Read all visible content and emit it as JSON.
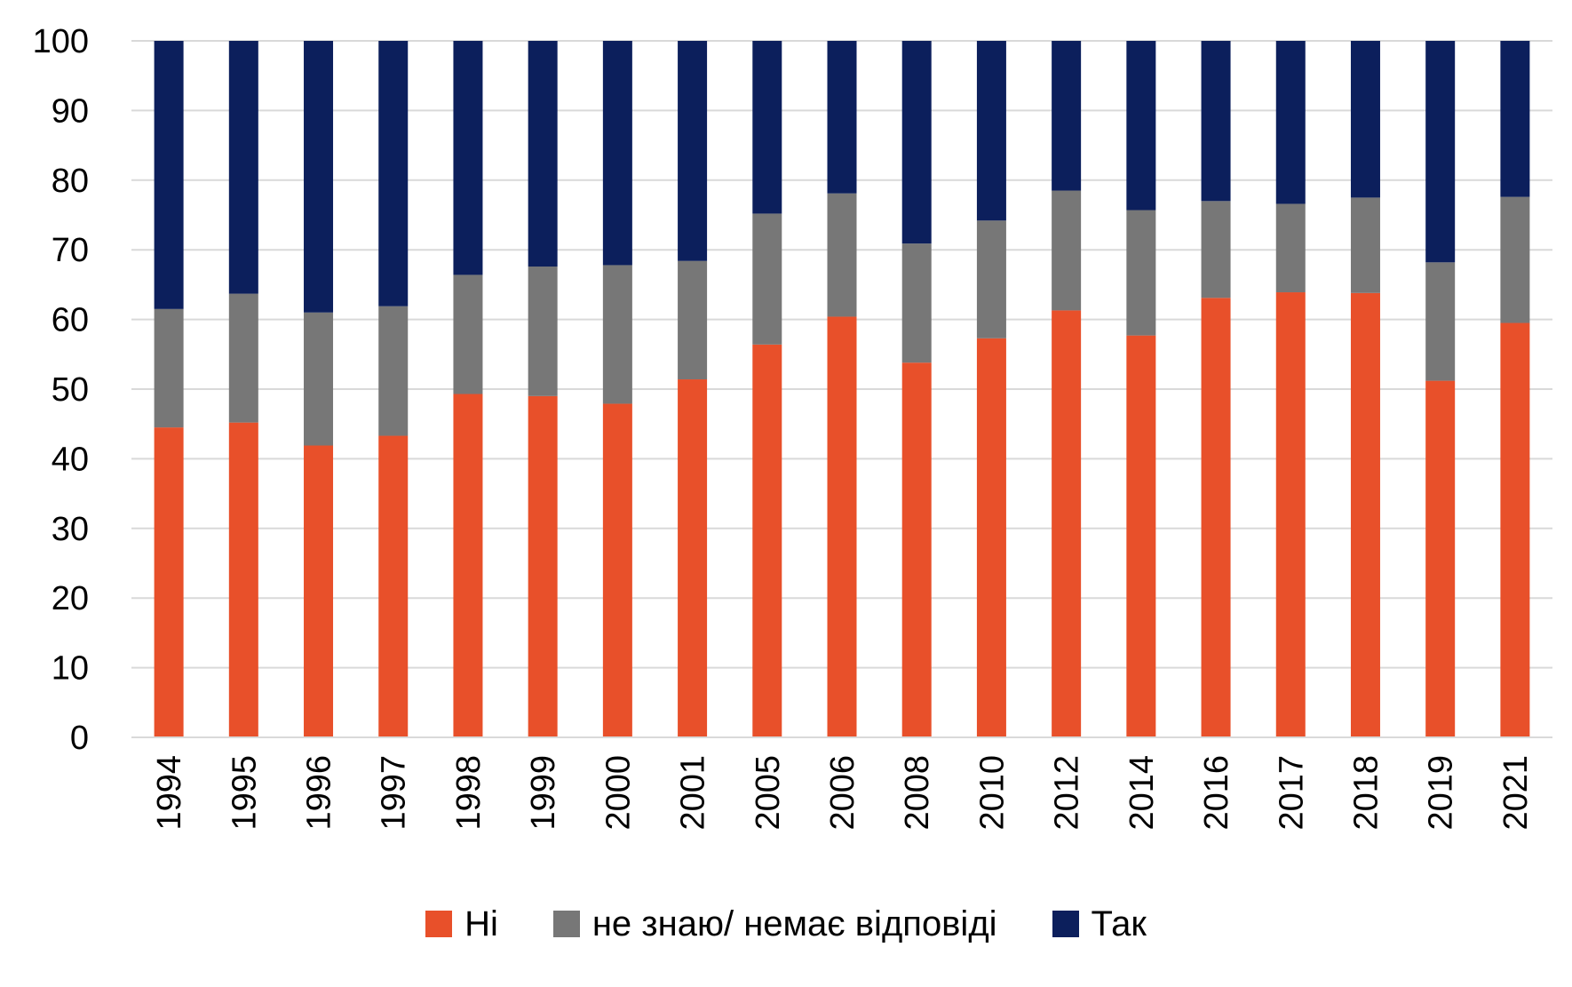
{
  "chart_data": {
    "type": "bar",
    "stacked": true,
    "title": "",
    "xlabel": "",
    "ylabel": "",
    "ylim": [
      0,
      100
    ],
    "yticks": [
      0,
      10,
      20,
      30,
      40,
      50,
      60,
      70,
      80,
      90,
      100
    ],
    "grid": true,
    "legend_position": "bottom",
    "categories": [
      "1994",
      "1995",
      "1996",
      "1997",
      "1998",
      "1999",
      "2000",
      "2001",
      "2005",
      "2006",
      "2008",
      "2010",
      "2012",
      "2014",
      "2016",
      "2017",
      "2018",
      "2019",
      "2021"
    ],
    "series": [
      {
        "name": "Ні",
        "color": "#e8502a",
        "values": [
          44.5,
          45.2,
          41.9,
          43.3,
          49.3,
          49.0,
          47.9,
          51.4,
          56.4,
          60.4,
          53.8,
          57.3,
          61.3,
          57.7,
          63.1,
          63.9,
          63.8,
          51.2,
          59.5
        ]
      },
      {
        "name": "не знаю/ немає відповіді",
        "color": "#777777",
        "values": [
          17.0,
          18.5,
          19.1,
          18.6,
          17.1,
          18.6,
          19.9,
          17.0,
          18.8,
          17.7,
          17.1,
          16.9,
          17.2,
          18.0,
          13.9,
          12.7,
          13.7,
          17.0,
          18.1
        ]
      },
      {
        "name": "Так",
        "color": "#0c1f5c",
        "values": [
          38.5,
          36.3,
          39.0,
          38.1,
          33.6,
          32.4,
          32.2,
          31.6,
          24.8,
          21.9,
          29.1,
          25.8,
          21.5,
          24.3,
          23.0,
          23.4,
          22.5,
          31.8,
          22.4
        ]
      }
    ]
  }
}
